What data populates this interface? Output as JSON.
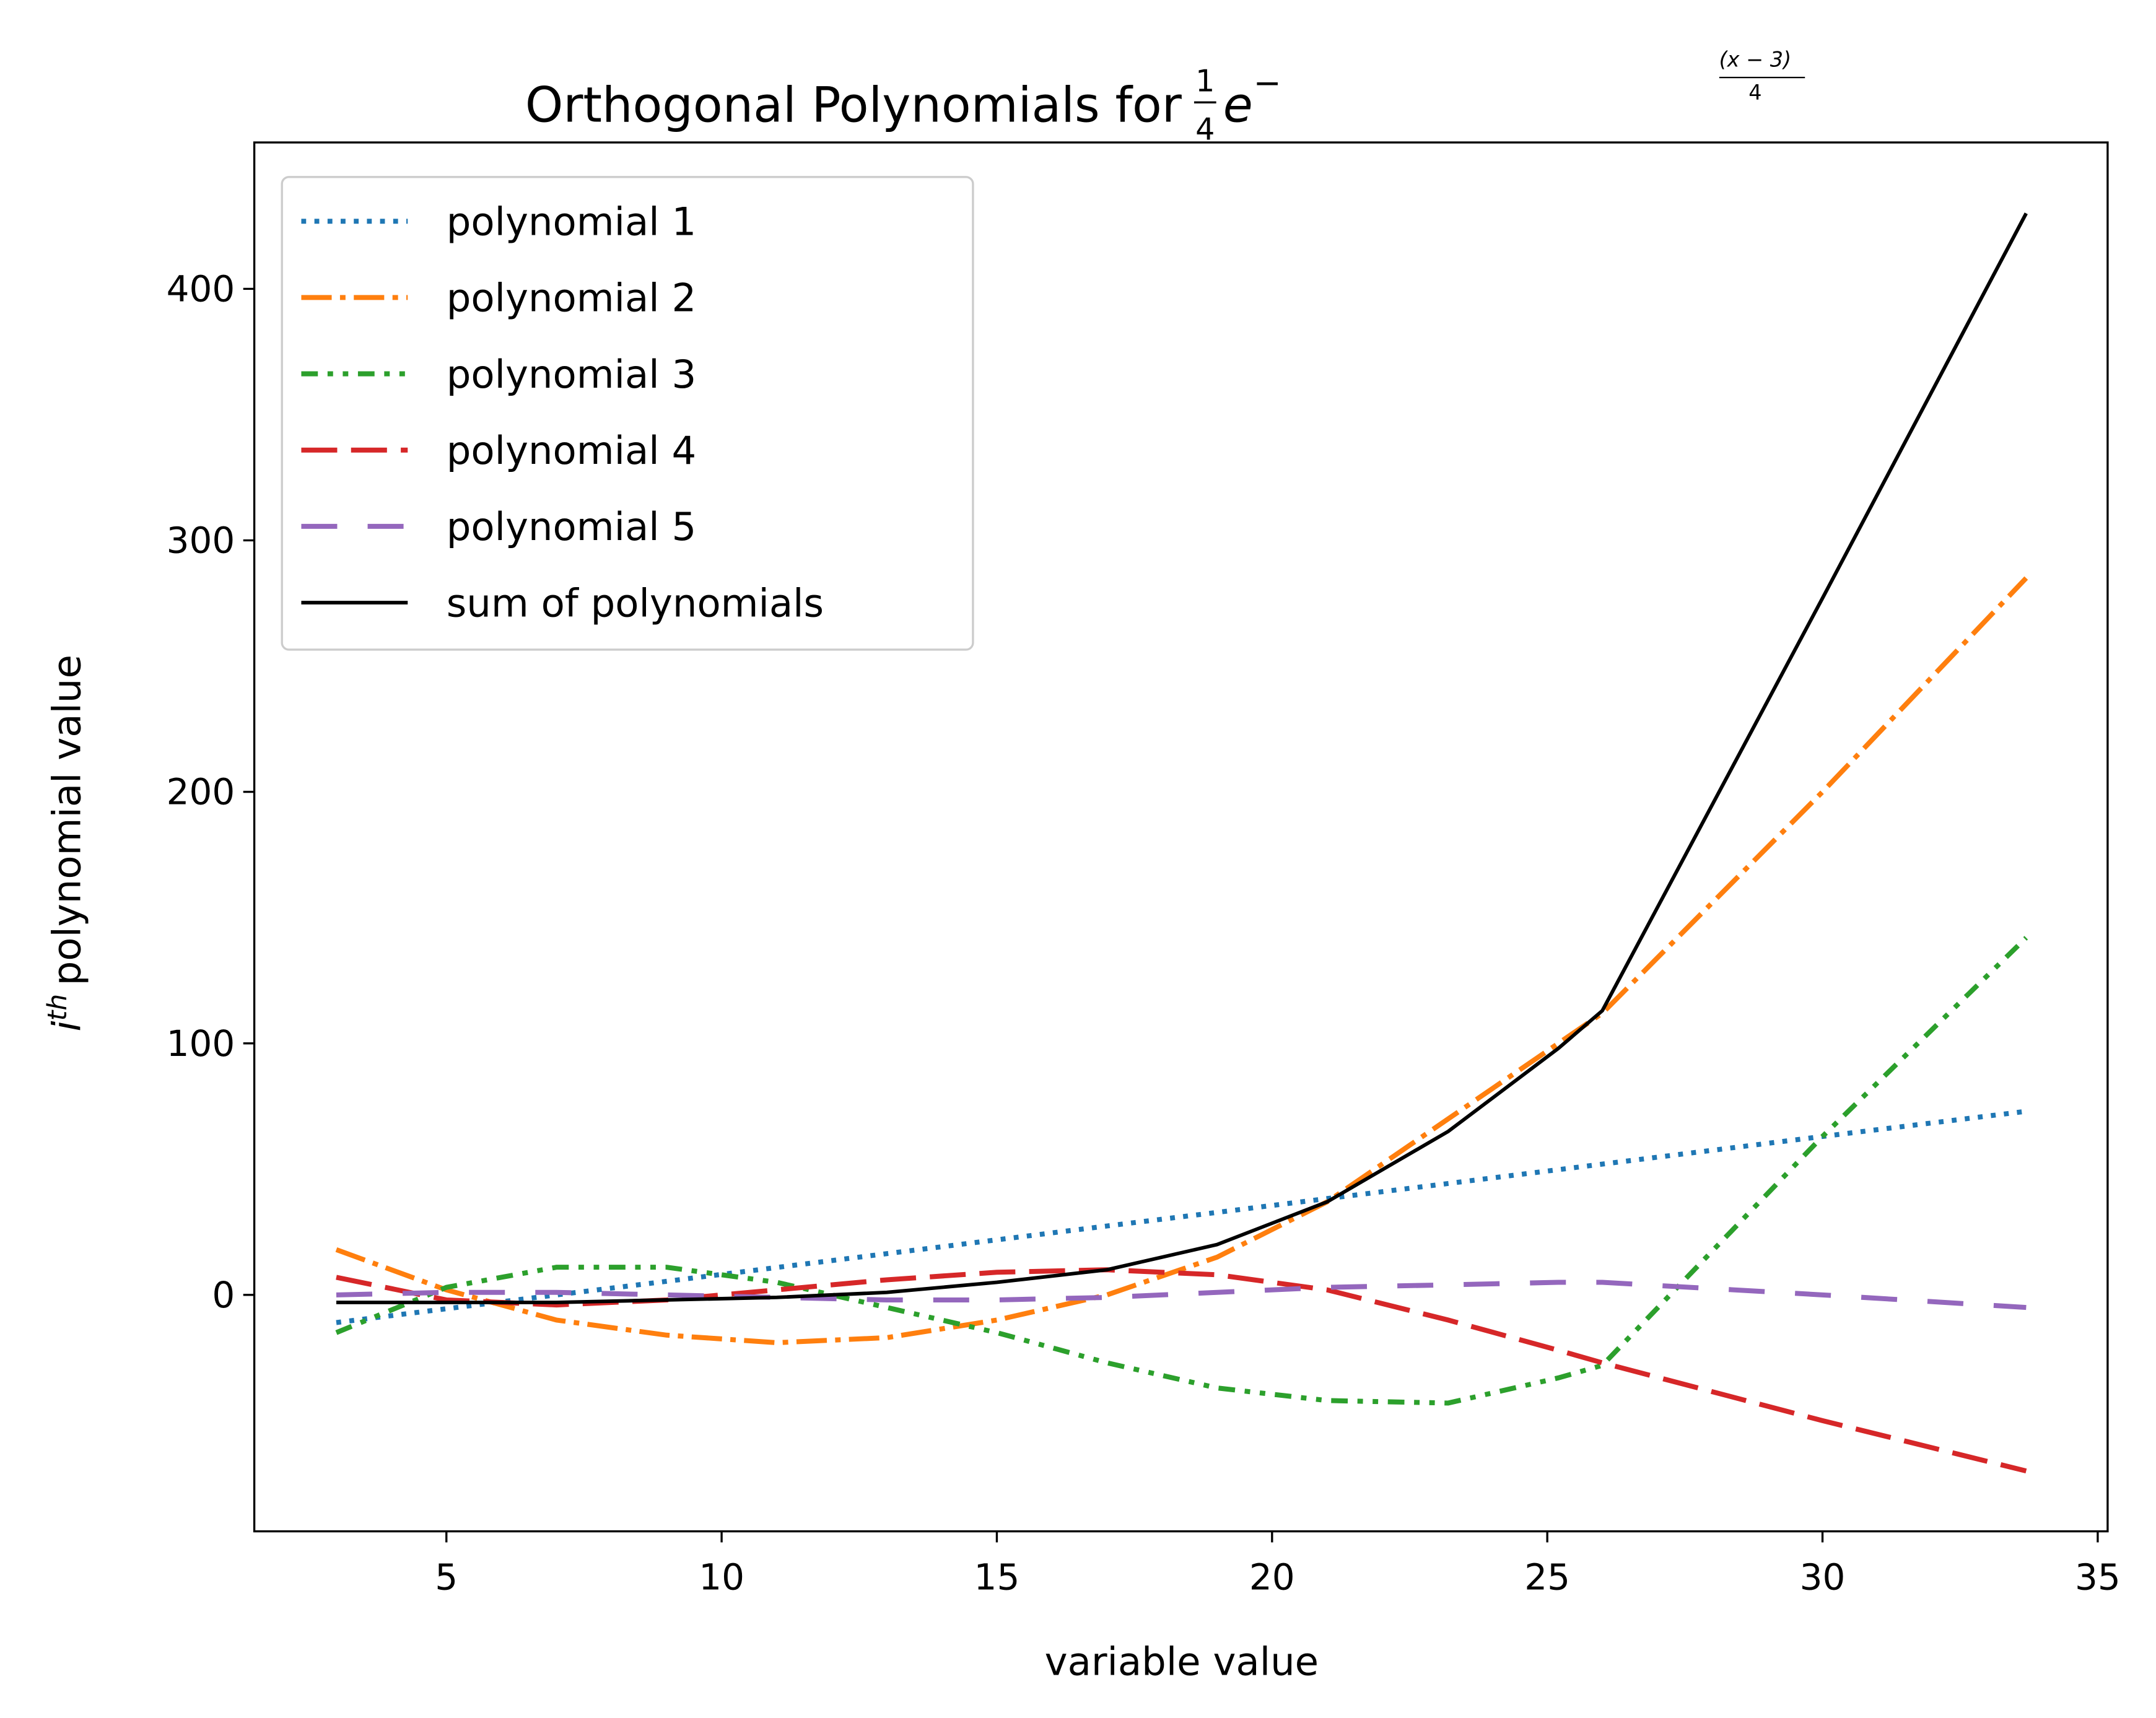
{
  "chart_data": {
    "type": "line",
    "title": "Orthogonal Polynomials for",
    "title_math": {
      "numerator": "1",
      "denominator": "4",
      "base": "e",
      "exponent_sign": "−",
      "exponent_numerator": "(x − 3)",
      "exponent_denominator": "4"
    },
    "xlabel": "variable value",
    "ylabel": {
      "base": "i",
      "sup": "th",
      "text": "polynomial value"
    },
    "x": [
      3,
      5,
      7,
      9,
      11,
      13,
      15,
      17,
      19,
      21,
      23.2,
      25.2,
      26,
      30,
      33.7
    ],
    "series": [
      {
        "name": "polynomial 1",
        "color": "#1f77b4",
        "style": "dotted",
        "values": [
          -11,
          -5.5,
          0,
          5.4,
          10.9,
          16.4,
          21.9,
          27.4,
          32.8,
          38.3,
          44.3,
          49.8,
          52,
          63,
          73
        ]
      },
      {
        "name": "polynomial 2",
        "color": "#ff7f0e",
        "style": "dashdot",
        "values": [
          18,
          2,
          -10,
          -16,
          -19,
          -17,
          -10,
          0,
          15,
          37,
          70,
          100,
          112,
          200,
          285
        ]
      },
      {
        "name": "polynomial 3",
        "color": "#2ca02c",
        "style": "dashdotdot",
        "values": [
          -15,
          3,
          11,
          11,
          5,
          -5,
          -15,
          -27,
          -37,
          -42,
          -43,
          -33,
          -28,
          63,
          142
        ]
      },
      {
        "name": "polynomial 4",
        "color": "#d62728",
        "style": "dashed",
        "values": [
          7,
          -2,
          -4,
          -2,
          2,
          6,
          9,
          10,
          8,
          2,
          -10,
          -22,
          -27,
          -50,
          -70
        ]
      },
      {
        "name": "polynomial 5",
        "color": "#9467bd",
        "style": "longdash",
        "values": [
          0,
          1,
          1,
          0,
          -1,
          -2,
          -2,
          -1,
          1,
          3,
          4,
          5,
          5,
          0,
          -5
        ]
      },
      {
        "name": "sum of polynomials",
        "color": "#000000",
        "style": "solid",
        "values": [
          -3,
          -3,
          -3,
          -2,
          -1,
          1,
          5,
          10,
          20,
          37,
          65,
          98,
          113,
          277,
          430
        ]
      }
    ],
    "xlim": [
      1.51,
      35.18
    ],
    "ylim": [
      -94,
      458.2
    ],
    "xticks": [
      5,
      10,
      15,
      20,
      25,
      30,
      35
    ],
    "yticks": [
      0,
      100,
      200,
      300,
      400
    ],
    "grid": false,
    "legend": "upper left"
  }
}
